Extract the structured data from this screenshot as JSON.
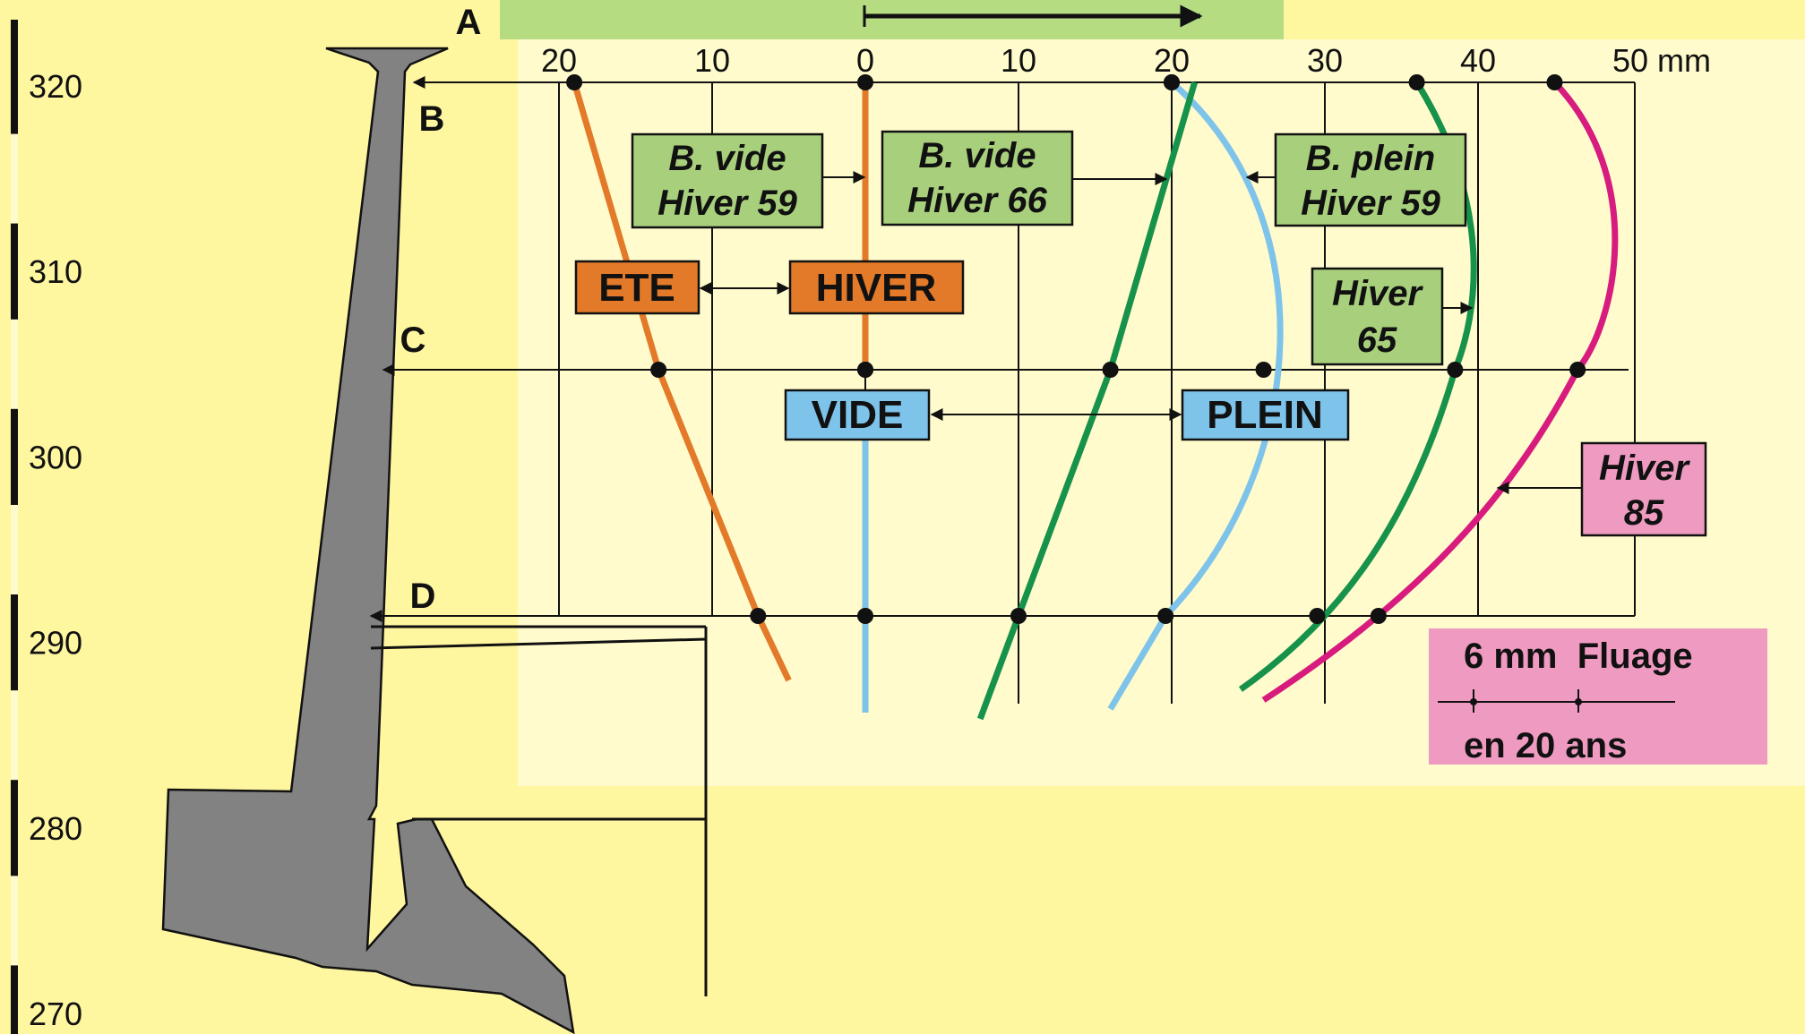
{
  "colors": {
    "background": "#fff6a0",
    "chart_panel": "#fffbcc",
    "top_bar": "#b6dc82",
    "dam": "#828282",
    "ete_hiver": "#e27a2a",
    "vide_plein": "#7ec3ea",
    "green_curve": "#16924a",
    "magenta_curve": "#d81b7e",
    "label_green": "#a8d07c",
    "label_pink": "#ef9bc1"
  },
  "elevation_scale": {
    "ticks": [
      "320",
      "310",
      "300",
      "290",
      "280",
      "270"
    ]
  },
  "points": {
    "a": "A",
    "b": "B",
    "c": "C",
    "d": "D"
  },
  "chart_data": {
    "type": "line",
    "x_ticks": [
      "20",
      "10",
      "0",
      "10",
      "20",
      "30",
      "40",
      "50 mm"
    ],
    "x_values": [
      -20,
      -10,
      0,
      10,
      20,
      30,
      40,
      50
    ],
    "y_levels": {
      "B": 320,
      "C": 304.5,
      "D": 291
    },
    "series": [
      {
        "name": "ETE",
        "color_key": "ete_hiver",
        "points": [
          [
            -19,
            320
          ],
          [
            -13.5,
            304.5
          ],
          [
            -7,
            291
          ]
        ]
      },
      {
        "name": "HIVER",
        "color_key": "ete_hiver",
        "points": [
          [
            0,
            320
          ],
          [
            0,
            304.5
          ]
        ]
      },
      {
        "name": "VIDE",
        "color_key": "vide_plein",
        "points": [
          [
            0,
            304.5
          ],
          [
            0,
            291
          ]
        ]
      },
      {
        "name": "PLEIN",
        "color_key": "vide_plein",
        "points": [
          [
            20,
            320
          ],
          [
            26,
            304.5
          ],
          [
            19.6,
            291
          ]
        ]
      },
      {
        "name": "B. vide Hiver 66",
        "color_key": "green_curve",
        "points": [
          [
            20,
            320
          ],
          [
            16,
            304.5
          ],
          [
            10,
            291
          ]
        ]
      },
      {
        "name": "B. plein Hiver 59",
        "color_key": "green_curve",
        "points": [
          [
            36,
            320
          ],
          [
            38.5,
            304.5
          ],
          [
            29.5,
            291
          ]
        ]
      },
      {
        "name": "Hiver 85",
        "color_key": "magenta_curve",
        "points": [
          [
            45,
            320
          ],
          [
            46.5,
            304.5
          ],
          [
            33.5,
            291
          ]
        ]
      }
    ]
  },
  "labels": {
    "b_vide_hiver_59": [
      "B. vide",
      "Hiver 59"
    ],
    "b_vide_hiver_66": [
      "B. vide",
      "Hiver 66"
    ],
    "b_plein_hiver_59": [
      "B. plein",
      "Hiver 59"
    ],
    "hiver_65": [
      "Hiver",
      "65"
    ],
    "hiver_85": [
      "Hiver",
      "85"
    ],
    "ete": "ETE",
    "hiver": "HIVER",
    "vide": "VIDE",
    "plein": "PLEIN"
  },
  "fluage": {
    "line1": "6 mm  Fluage",
    "line2": "en 20 ans"
  }
}
